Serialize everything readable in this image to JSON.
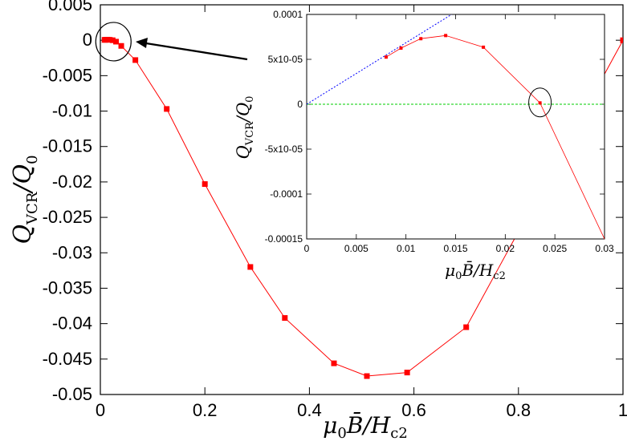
{
  "chart_data": [
    {
      "type": "line",
      "xlabel": "μ0B̄/Hc2",
      "ylabel": "QVCR/Q0",
      "xlim": [
        0,
        1
      ],
      "ylim": [
        -0.05,
        0.005
      ],
      "xticks": [
        0,
        0.2,
        0.4,
        0.6,
        0.8,
        1
      ],
      "yticks": [
        0.005,
        0,
        -0.005,
        -0.01,
        -0.015,
        -0.02,
        -0.025,
        -0.03,
        -0.035,
        -0.04,
        -0.045,
        -0.05
      ],
      "xtick_labels": [
        "0",
        "0.2",
        "0.4",
        "0.6",
        "0.8",
        "1"
      ],
      "ytick_labels": [
        "0.005",
        "0",
        "-0.005",
        "-0.01",
        "-0.015",
        "-0.02",
        "-0.025",
        "-0.03",
        "-0.035",
        "-0.04",
        "-0.045",
        "-0.05"
      ],
      "series": [
        {
          "name": "Q_VCR",
          "color": "#ff0000",
          "x": [
            0.008,
            0.0095,
            0.0115,
            0.014,
            0.018,
            0.0235,
            0.03,
            0.04,
            0.067,
            0.127,
            0.2,
            0.287,
            0.353,
            0.447,
            0.51,
            0.587,
            0.7,
            1.0
          ],
          "y": [
            5e-05,
            6e-05,
            7e-05,
            8e-05,
            6e-05,
            0.0,
            -0.0002,
            -0.0008,
            -0.0028,
            -0.0097,
            -0.0203,
            -0.032,
            -0.0392,
            -0.0456,
            -0.0474,
            -0.0469,
            -0.0405,
            0.0
          ]
        }
      ],
      "annotations": [
        "circle around points near origin",
        "arrow pointing to inset"
      ]
    },
    {
      "type": "line",
      "inset": true,
      "xlabel": "μ0B̄/Hc2",
      "ylabel": "QVCR/Q0",
      "xlim": [
        0,
        0.03
      ],
      "ylim": [
        -0.00015,
        0.0001
      ],
      "xticks": [
        0,
        0.005,
        0.01,
        0.015,
        0.02,
        0.025,
        0.03
      ],
      "yticks": [
        0.0001,
        5e-05,
        0,
        -5e-05,
        -0.0001,
        -0.00015
      ],
      "xtick_labels": [
        "0",
        "0.005",
        "0.01",
        "0.015",
        "0.02",
        "0.025",
        "0.03"
      ],
      "ytick_labels": [
        "0.0001",
        "5x10-05",
        "0",
        "-5x10-05",
        "-0.0001",
        "-0.00015"
      ],
      "series": [
        {
          "name": "Q_VCR",
          "color": "#ff0000",
          "x": [
            0.008,
            0.0095,
            0.0115,
            0.014,
            0.0178,
            0.0235,
            0.03
          ],
          "y": [
            5.25e-05,
            6.25e-05,
            7.3e-05,
            7.65e-05,
            6.35e-05,
            1.5e-06,
            -0.00015
          ]
        },
        {
          "name": "linear fit",
          "color": "#0000ff",
          "style": "dotted",
          "x": [
            0,
            0.0146
          ],
          "y": [
            0,
            0.0001
          ]
        },
        {
          "name": "zero line",
          "color": "#00cc00",
          "style": "dashed",
          "x": [
            0,
            0.03
          ],
          "y": [
            0,
            0
          ]
        }
      ],
      "annotations": [
        "circle around zero crossing near 0.0235"
      ]
    }
  ]
}
